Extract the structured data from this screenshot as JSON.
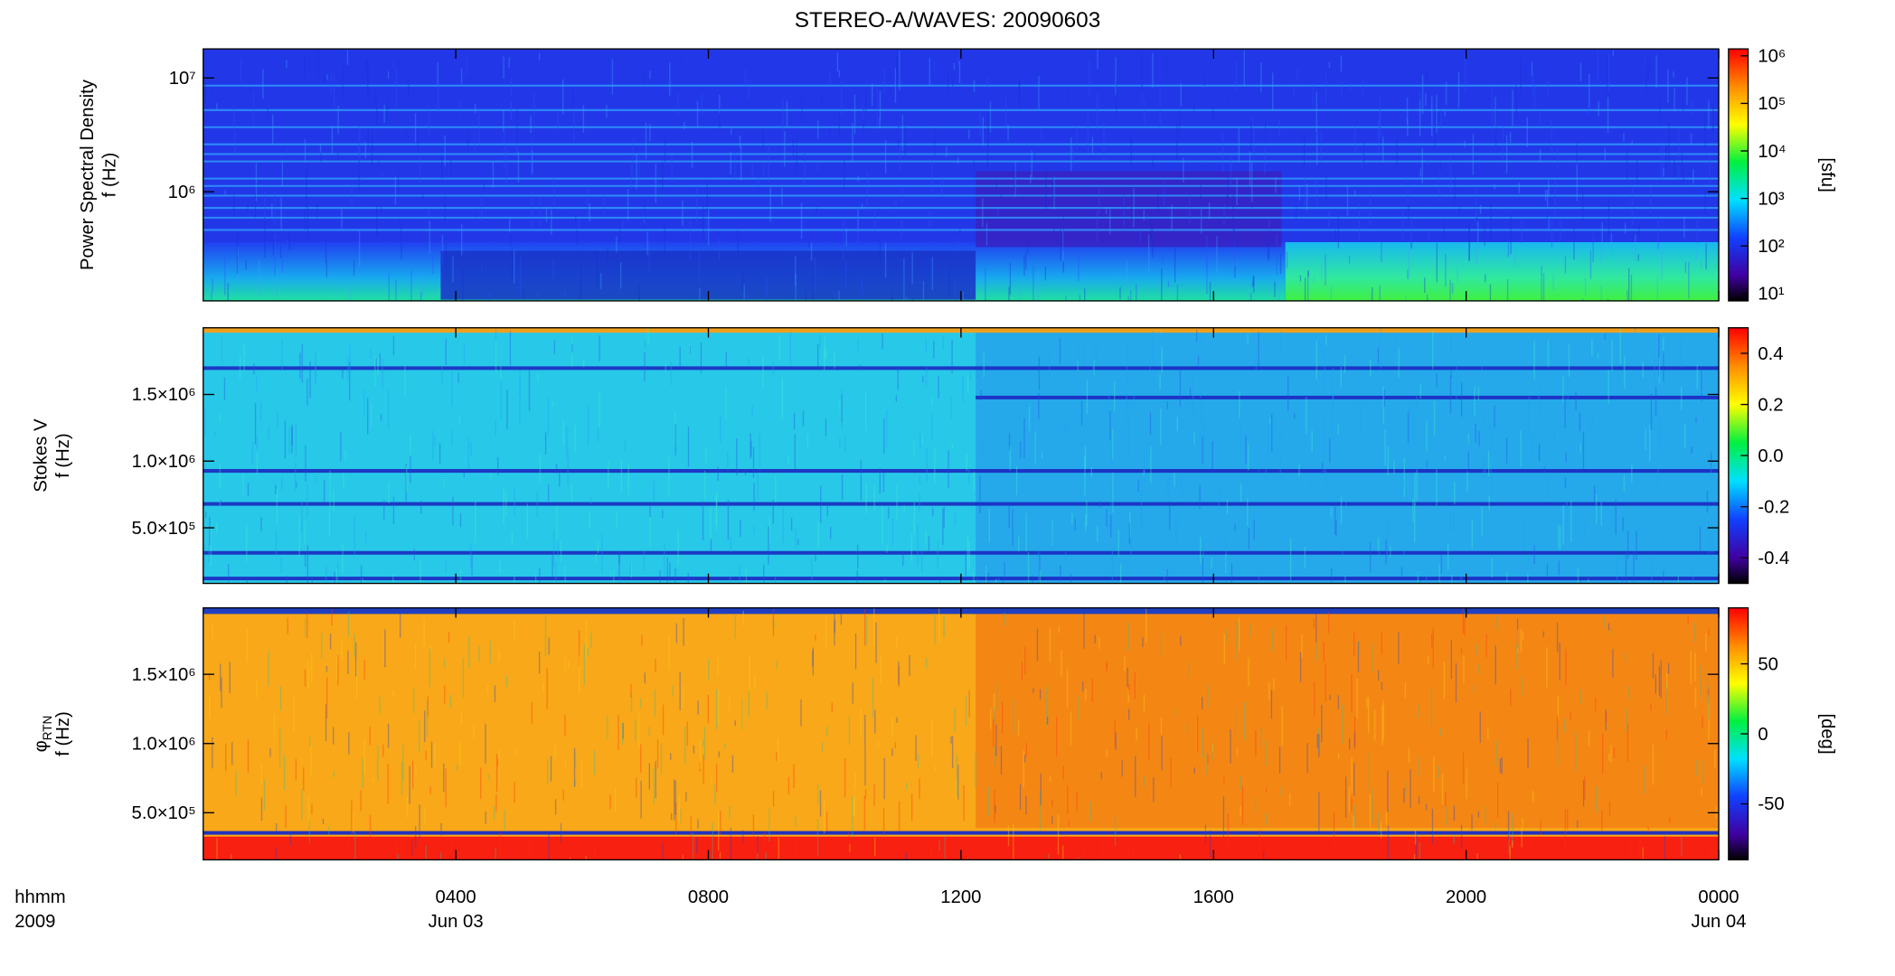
{
  "title": "STEREO-A/WAVES: 20090603",
  "x_axis": {
    "xlim": [
      0,
      24
    ],
    "xticks": [
      {
        "value": 4,
        "label": "0400"
      },
      {
        "value": 8,
        "label": "0800"
      },
      {
        "value": 12,
        "label": "1200"
      },
      {
        "value": 16,
        "label": "1600"
      },
      {
        "value": 20,
        "label": "2000"
      },
      {
        "value": 24,
        "label": "0000"
      }
    ],
    "date_labels": [
      {
        "value": 4,
        "label": "Jun 03"
      },
      {
        "value": 24,
        "label": "Jun 04"
      }
    ],
    "unit_labels": [
      "hhmm",
      "2009"
    ]
  },
  "chart_data": [
    {
      "type": "spectrogram",
      "ylabel": [
        "Power Spectral Density",
        "f (Hz)"
      ],
      "log_y": true,
      "ylim": [
        110000,
        18000000
      ],
      "yticks": [
        {
          "value": 1000000,
          "label": "10⁶"
        },
        {
          "value": 10000000,
          "label": "10⁷"
        }
      ],
      "colorbar": {
        "label": "[sfu]",
        "log": true,
        "lim": [
          7,
          1400000
        ],
        "ticks": [
          {
            "value": 10,
            "label": "10¹"
          },
          {
            "value": 100,
            "label": "10²"
          },
          {
            "value": 1000,
            "label": "10³"
          },
          {
            "value": 10000,
            "label": "10⁴"
          },
          {
            "value": 100000,
            "label": "10⁵"
          },
          {
            "value": 1000000,
            "label": "10⁶"
          }
        ]
      }
    },
    {
      "type": "spectrogram",
      "ylabel": [
        "Stokes V",
        "f (Hz)"
      ],
      "log_y": false,
      "ylim": [
        83000,
        2000000
      ],
      "yticks": [
        {
          "value": 500000,
          "label": "5.0×10⁵"
        },
        {
          "value": 1000000,
          "label": "1.0×10⁶"
        },
        {
          "value": 1500000,
          "label": "1.5×10⁶"
        }
      ],
      "colorbar": {
        "log": false,
        "lim": [
          -0.5,
          0.5
        ],
        "ticks": [
          -0.4,
          -0.2,
          {
            "value": 0,
            "label": "0.0"
          },
          0.2,
          0.4
        ]
      }
    },
    {
      "type": "spectrogram",
      "ylabel_symbol": "φ",
      "ylabel_subscript": "RTN",
      "ylabel": [
        "f (Hz)"
      ],
      "log_y": false,
      "ylim": [
        160000,
        1980000
      ],
      "yticks": [
        {
          "value": 500000,
          "label": "5.0×10⁵"
        },
        {
          "value": 1000000,
          "label": "1.0×10⁶"
        },
        {
          "value": 1500000,
          "label": "1.5×10⁶"
        }
      ],
      "colorbar": {
        "label": "[deg]",
        "log": false,
        "lim": [
          -90,
          90
        ],
        "ticks": [
          -50,
          0,
          50
        ]
      }
    }
  ]
}
